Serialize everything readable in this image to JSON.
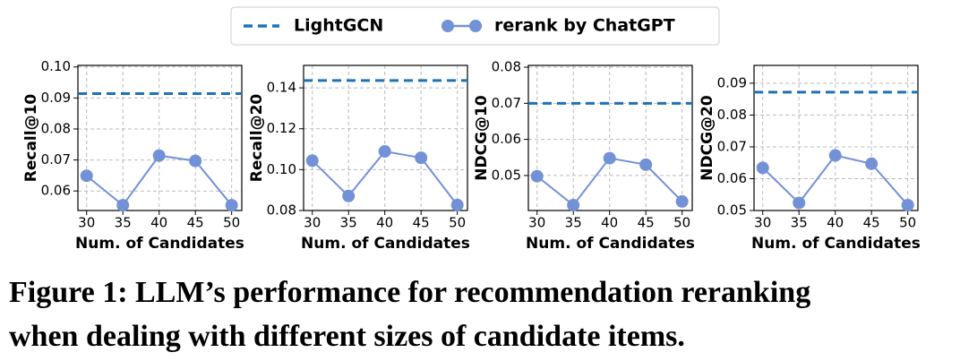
{
  "chart_data": [
    {
      "type": "line",
      "ylabel": "Recall@10",
      "xlabel": "Num. of Candidates",
      "x": [
        30,
        35,
        40,
        45,
        50
      ],
      "xlim": [
        28.8,
        51.4
      ],
      "xticks": [
        30,
        35,
        40,
        45,
        50
      ],
      "ylim": [
        0.0537,
        0.1005
      ],
      "yticks": [
        0.06,
        0.07,
        0.08,
        0.09,
        {
          "value": 0.1,
          "label": "0.10"
        }
      ],
      "grid": true,
      "hline": {
        "name": "LightGCN",
        "value": 0.0914,
        "color": "#1f72b6",
        "style": "dashed"
      },
      "series": [
        {
          "name": "rerank by ChatGPT",
          "color": "#7391d6",
          "values": [
            0.0649,
            0.0554,
            0.0714,
            0.0697,
            0.0554
          ]
        }
      ]
    },
    {
      "type": "line",
      "ylabel": "Recall@20",
      "xlabel": "Num. of Candidates",
      "x": [
        30,
        35,
        40,
        45,
        50
      ],
      "xlim": [
        28.8,
        51.4
      ],
      "xticks": [
        30,
        35,
        40,
        45,
        50
      ],
      "ylim": [
        0.08,
        0.151
      ],
      "yticks": [
        0.08,
        {
          "value": 0.1,
          "label": "0.10"
        },
        0.12,
        0.14
      ],
      "grid": true,
      "hline": {
        "name": "LightGCN",
        "value": 0.1436,
        "color": "#1f72b6",
        "style": "dashed"
      },
      "series": [
        {
          "name": "rerank by ChatGPT",
          "color": "#7391d6",
          "values": [
            0.1044,
            0.0871,
            0.1089,
            0.1058,
            0.0827
          ]
        }
      ]
    },
    {
      "type": "line",
      "ylabel": "NDCG@10",
      "xlabel": "Num. of Candidates",
      "x": [
        30,
        35,
        40,
        45,
        50
      ],
      "xlim": [
        28.8,
        51.4
      ],
      "xticks": [
        30,
        35,
        40,
        45,
        50
      ],
      "ylim": [
        0.0403,
        0.0805
      ],
      "yticks": [
        0.05,
        0.06,
        0.07,
        0.08
      ],
      "grid": true,
      "hline": {
        "name": "LightGCN",
        "value": 0.07,
        "color": "#1f72b6",
        "style": "dashed"
      },
      "series": [
        {
          "name": "rerank by ChatGPT",
          "color": "#7391d6",
          "values": [
            0.0498,
            0.0418,
            0.0548,
            0.053,
            0.0428
          ]
        }
      ]
    },
    {
      "type": "line",
      "ylabel": "NDCG@20",
      "xlabel": "Num. of Candidates",
      "x": [
        30,
        35,
        40,
        45,
        50
      ],
      "xlim": [
        28.8,
        51.4
      ],
      "xticks": [
        30,
        35,
        40,
        45,
        50
      ],
      "ylim": [
        0.05,
        0.0956
      ],
      "yticks": [
        0.05,
        0.06,
        0.07,
        0.08,
        0.09
      ],
      "grid": true,
      "hline": {
        "name": "LightGCN",
        "value": 0.0872,
        "color": "#1f72b6",
        "style": "dashed"
      },
      "series": [
        {
          "name": "rerank by ChatGPT",
          "color": "#7391d6",
          "values": [
            0.0634,
            0.0524,
            0.0673,
            0.0647,
            0.0517
          ]
        }
      ]
    }
  ],
  "caption": [
    "Figure 1: LLM’s performance for recommendation reranking",
    "when dealing with different sizes of candidate items."
  ]
}
